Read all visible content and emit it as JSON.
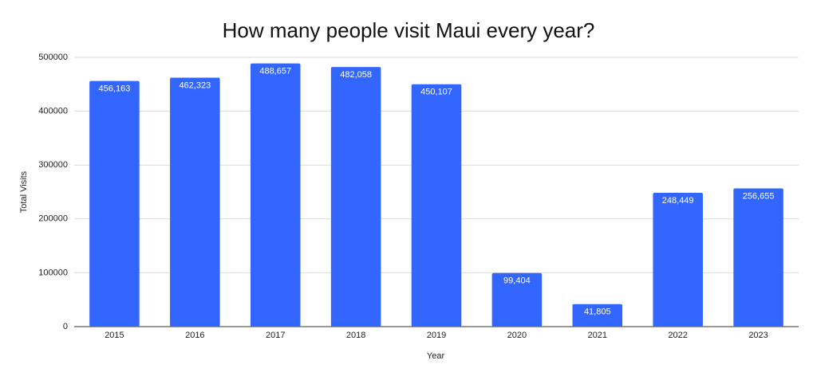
{
  "chart_data": {
    "type": "bar",
    "title": "How many people visit Maui every year?",
    "x_label": "Year",
    "y_label": "Total Visits",
    "categories": [
      "2015",
      "2016",
      "2017",
      "2018",
      "2019",
      "2020",
      "2021",
      "2022",
      "2023"
    ],
    "values": [
      456163,
      462323,
      488657,
      482058,
      450107,
      99404,
      41805,
      248449,
      256655
    ],
    "value_labels": [
      "456,163",
      "462,323",
      "488,657",
      "482,058",
      "450,107",
      "99,404",
      "41,805",
      "248,449",
      "256,655"
    ],
    "color": "#3366ff",
    "ylim": [
      0,
      500000
    ],
    "yticks": [
      0,
      100000,
      200000,
      300000,
      400000,
      500000
    ],
    "grid": true
  }
}
